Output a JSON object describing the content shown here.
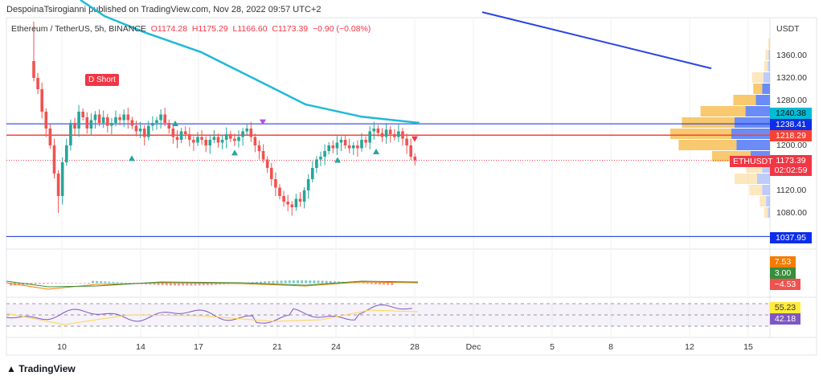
{
  "header": {
    "published": "DespoinaTsirogianni published on TradingView.com, Nov 28, 2022 09:57 UTC+2"
  },
  "legend": {
    "symbol": "Ethereum / TetherUS, 5h, BINANCE",
    "open": "O1174.28",
    "high": "H1175.29",
    "low": "L1166.60",
    "close": "C1173.39",
    "change": "−0.90 (−0.08%)"
  },
  "price_axis": {
    "currency": "USDT",
    "labels": [
      "1360.00",
      "1320.00",
      "1280.00",
      "1200.00",
      "1120.00",
      "1080.00"
    ]
  },
  "price_tags": [
    {
      "value": "1240.38",
      "color": "#00bcd4"
    },
    {
      "value": "1238.41",
      "color": "#0c2ee8"
    },
    {
      "value": "1218.29",
      "color": "#f44336"
    },
    {
      "value": "1173.39",
      "color": "#f23645"
    },
    {
      "value": "1037.95",
      "color": "#0c2ee8"
    }
  ],
  "countdown": "02:02:59",
  "symbol_tag": "ETHUSDT",
  "annotation": "D Short",
  "macd_tags": [
    {
      "value": "7.53",
      "color": "#f57c00"
    },
    {
      "value": "3.00",
      "color": "#388e3c"
    },
    {
      "value": "−4.53",
      "color": "#ef5350"
    }
  ],
  "rsi_tags": [
    {
      "value": "55.23",
      "color": "#ffeb3b"
    },
    {
      "value": "42.18",
      "color": "#7e57c2"
    }
  ],
  "time_axis": [
    "10",
    "14",
    "17",
    "21",
    "24",
    "28",
    "Dec",
    "5",
    "8",
    "12",
    "15"
  ],
  "footer": {
    "brand": "TradingView"
  },
  "chart_data": {
    "type": "candlestick",
    "closes": [
      1320,
      1300,
      1260,
      1230,
      1200,
      1150,
      1110,
      1170,
      1200,
      1240,
      1230,
      1260,
      1250,
      1230,
      1245,
      1255,
      1240,
      1250,
      1235,
      1240,
      1250,
      1245,
      1255,
      1245,
      1235,
      1225,
      1230,
      1215,
      1235,
      1240,
      1245,
      1255,
      1240,
      1230,
      1215,
      1210,
      1225,
      1220,
      1210,
      1205,
      1215,
      1210,
      1200,
      1210,
      1215,
      1205,
      1210,
      1220,
      1212,
      1208,
      1215,
      1225,
      1230,
      1215,
      1200,
      1190,
      1175,
      1160,
      1140,
      1125,
      1110,
      1100,
      1095,
      1090,
      1105,
      1100,
      1120,
      1140,
      1160,
      1175,
      1180,
      1190,
      1200,
      1195,
      1205,
      1210,
      1200,
      1195,
      1200,
      1195,
      1210,
      1205,
      1225,
      1230,
      1222,
      1215,
      1228,
      1220,
      1215,
      1225,
      1212,
      1200,
      1180,
      1173.39
    ],
    "ma": [
      1430,
      1401,
      1366,
      1316,
      1273,
      1251,
      1240
    ],
    "trendline": [
      1437,
      1337
    ],
    "hlines": [
      1238.41,
      1218.29,
      1037.95
    ],
    "volume_profile": [
      [
        1380,
        3,
        0
      ],
      [
        1360,
        5,
        2
      ],
      [
        1340,
        6,
        3
      ],
      [
        1320,
        18,
        10
      ],
      [
        1300,
        14,
        12
      ],
      [
        1280,
        35,
        22
      ],
      [
        1260,
        70,
        38
      ],
      [
        1240,
        82,
        55
      ],
      [
        1220,
        95,
        60
      ],
      [
        1200,
        90,
        52
      ],
      [
        1180,
        60,
        30
      ],
      [
        1160,
        25,
        12
      ],
      [
        1140,
        35,
        20
      ],
      [
        1120,
        20,
        12
      ],
      [
        1100,
        10,
        6
      ],
      [
        1080,
        6,
        3
      ]
    ],
    "ylim": [
      1060,
      1420
    ]
  }
}
